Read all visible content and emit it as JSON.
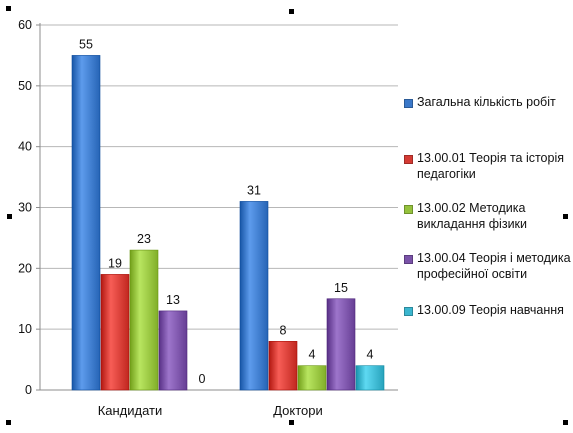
{
  "chart_data": {
    "type": "bar",
    "categories": [
      "Кандидати",
      "Доктори"
    ],
    "series": [
      {
        "name": "Загальна кількість робіт",
        "values": [
          55,
          31
        ],
        "color": "#3a78c9"
      },
      {
        "name": "13.00.01 Теорія та історія педагогіки",
        "values": [
          19,
          8
        ],
        "color": "#d43a33"
      },
      {
        "name": "13.00.02 Методика викладання фізики",
        "values": [
          23,
          4
        ],
        "color": "#95c23d"
      },
      {
        "name": "13.00.04 Теорія і методика професійної освіти",
        "values": [
          13,
          15
        ],
        "color": "#7a52a8"
      },
      {
        "name": "13.00.09 Теорія навчання",
        "values": [
          0,
          4
        ],
        "color": "#3bb6cf"
      }
    ],
    "yticks": [
      "0",
      "10",
      "20",
      "30",
      "40",
      "50",
      "60"
    ],
    "ylim": [
      0,
      60
    ],
    "grid": true,
    "legend_position": "right"
  }
}
